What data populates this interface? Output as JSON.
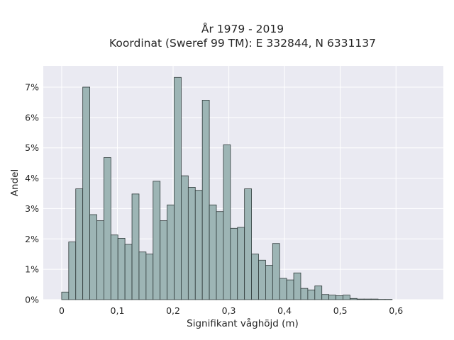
{
  "chart_data": {
    "type": "bar",
    "title_lines": [
      "År 1979 - 2019",
      "Koordinat (Sweref 99 TM): E 332844, N 6331137"
    ],
    "xlabel": "Signifikant våghöjd (m)",
    "ylabel": "Andel",
    "xlim": [
      -0.033,
      0.685
    ],
    "ylim": [
      0,
      7.7
    ],
    "x_ticks": [
      0,
      0.1,
      0.2,
      0.3,
      0.4,
      0.5,
      0.6
    ],
    "x_tick_labels": [
      "0",
      "0,1",
      "0,2",
      "0,3",
      "0,4",
      "0,5",
      "0,6"
    ],
    "y_ticks": [
      0,
      1,
      2,
      3,
      4,
      5,
      6,
      7
    ],
    "y_tick_labels": [
      "0%",
      "1%",
      "2%",
      "3%",
      "4%",
      "5%",
      "6%",
      "7%"
    ],
    "grid": true,
    "bin_width": 0.01262,
    "bins_start": 0.0,
    "values": [
      0.25,
      1.9,
      3.65,
      7.0,
      2.8,
      2.6,
      4.68,
      2.13,
      2.02,
      1.82,
      3.48,
      1.57,
      1.5,
      3.9,
      2.6,
      3.12,
      7.32,
      4.08,
      3.7,
      3.6,
      6.57,
      3.12,
      2.9,
      5.1,
      2.35,
      2.38,
      3.65,
      1.5,
      1.3,
      1.13,
      1.85,
      0.7,
      0.65,
      0.88,
      0.37,
      0.32,
      0.45,
      0.17,
      0.15,
      0.13,
      0.15,
      0.04,
      0.02,
      0.02,
      0.02,
      0.01,
      0.01
    ],
    "colors": {
      "plot_background": "#eaeaf2",
      "bar_fill": "#9db5b5",
      "bar_edge": "#2f3a3a",
      "grid": "#ffffff"
    }
  }
}
